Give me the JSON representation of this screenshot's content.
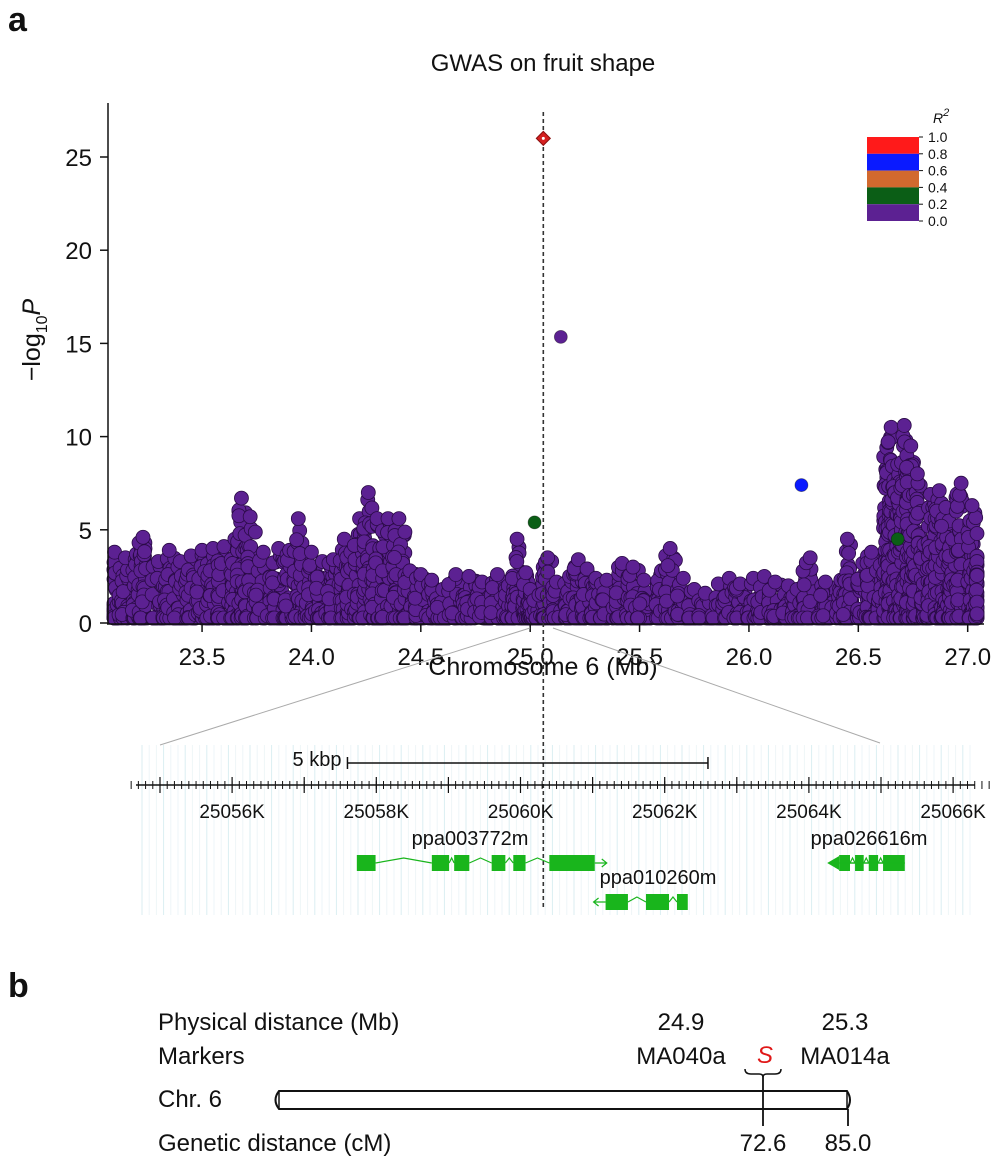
{
  "panel_a_label": "a",
  "panel_b_label": "b",
  "chart_data": [
    {
      "type": "scatter",
      "title": "GWAS on fruit shape",
      "xlabel": "Chromosome 6 (Mb)",
      "ylabel_main": "−log",
      "ylabel_sub": "10",
      "ylabel_italic": "P",
      "xlim": [
        23.07,
        27.07
      ],
      "ylim": [
        0,
        28
      ],
      "x_ticks": [
        23.5,
        24.0,
        24.5,
        25.0,
        25.5,
        26.0,
        26.5,
        27.0
      ],
      "x_tick_labels": [
        "23.5",
        "24.0",
        "24.5",
        "25.0",
        "25.5",
        "26.0",
        "26.5",
        "27.0"
      ],
      "y_ticks": [
        0,
        5,
        10,
        15,
        20,
        25
      ],
      "y_tick_labels": [
        "0",
        "5",
        "10",
        "15",
        "20",
        "25"
      ],
      "lead_snp_x": 25.06,
      "legend": {
        "title": "R",
        "title_sup": "2",
        "placement": "top-right",
        "bins": [
          {
            "from": 0.8,
            "to": 1.0,
            "color": "#ff1a1a"
          },
          {
            "from": 0.6,
            "to": 0.8,
            "color": "#0a1aff"
          },
          {
            "from": 0.4,
            "to": 0.6,
            "color": "#d2692e"
          },
          {
            "from": 0.2,
            "to": 0.4,
            "color": "#0b5e16"
          },
          {
            "from": 0.0,
            "to": 0.2,
            "color": "#5c2192"
          }
        ],
        "tick_labels": [
          "1.0",
          "0.8",
          "0.6",
          "0.4",
          "0.2",
          "0.0"
        ]
      },
      "highlighted_points": [
        {
          "name": "lead-snp",
          "x": 25.06,
          "y": 26.0,
          "r2_color": "#d42020",
          "shape": "diamond"
        },
        {
          "name": "snp-15",
          "x": 25.14,
          "y": 15.35,
          "r2_color": "#5c2192",
          "shape": "circle"
        },
        {
          "name": "snp-ld-blue",
          "x": 26.24,
          "y": 7.4,
          "r2_color": "#0a1aff",
          "shape": "circle"
        },
        {
          "name": "snp-ld-green",
          "x": 25.02,
          "y": 5.4,
          "r2_color": "#0b5e16",
          "shape": "circle"
        },
        {
          "name": "snp-ld-green-2",
          "x": 26.68,
          "y": 4.5,
          "r2_color": "#0b5e16",
          "shape": "circle"
        }
      ],
      "background_color": "#5c2192",
      "background_peaks": [
        {
          "x": 23.1,
          "y": 3.8
        },
        {
          "x": 23.15,
          "y": 3.5
        },
        {
          "x": 23.2,
          "y": 3.7
        },
        {
          "x": 23.23,
          "y": 4.6
        },
        {
          "x": 23.3,
          "y": 3.3
        },
        {
          "x": 23.35,
          "y": 3.9
        },
        {
          "x": 23.4,
          "y": 3.3
        },
        {
          "x": 23.45,
          "y": 3.6
        },
        {
          "x": 23.5,
          "y": 3.9
        },
        {
          "x": 23.55,
          "y": 4.0
        },
        {
          "x": 23.6,
          "y": 4.1
        },
        {
          "x": 23.65,
          "y": 4.5
        },
        {
          "x": 23.68,
          "y": 6.7
        },
        {
          "x": 23.72,
          "y": 5.7
        },
        {
          "x": 23.78,
          "y": 3.8
        },
        {
          "x": 23.85,
          "y": 4.0
        },
        {
          "x": 23.9,
          "y": 3.9
        },
        {
          "x": 23.94,
          "y": 5.6
        },
        {
          "x": 24.0,
          "y": 3.8
        },
        {
          "x": 24.05,
          "y": 3.3
        },
        {
          "x": 24.1,
          "y": 3.4
        },
        {
          "x": 24.15,
          "y": 4.5
        },
        {
          "x": 24.18,
          "y": 3.8
        },
        {
          "x": 24.22,
          "y": 5.6
        },
        {
          "x": 24.26,
          "y": 7.0
        },
        {
          "x": 24.3,
          "y": 5.6
        },
        {
          "x": 24.35,
          "y": 5.6
        },
        {
          "x": 24.4,
          "y": 5.6
        },
        {
          "x": 24.45,
          "y": 2.8
        },
        {
          "x": 24.5,
          "y": 2.6
        },
        {
          "x": 24.55,
          "y": 2.3
        },
        {
          "x": 24.6,
          "y": 1.8
        },
        {
          "x": 24.66,
          "y": 2.6
        },
        {
          "x": 24.72,
          "y": 2.5
        },
        {
          "x": 24.78,
          "y": 2.2
        },
        {
          "x": 24.85,
          "y": 2.6
        },
        {
          "x": 24.9,
          "y": 2.0
        },
        {
          "x": 24.94,
          "y": 4.5
        },
        {
          "x": 24.98,
          "y": 2.7
        },
        {
          "x": 25.0,
          "y": 1.8
        },
        {
          "x": 25.04,
          "y": 1.5
        },
        {
          "x": 25.08,
          "y": 3.5
        },
        {
          "x": 25.12,
          "y": 2.2
        },
        {
          "x": 25.18,
          "y": 2.5
        },
        {
          "x": 25.22,
          "y": 3.4
        },
        {
          "x": 25.26,
          "y": 2.9
        },
        {
          "x": 25.3,
          "y": 2.4
        },
        {
          "x": 25.35,
          "y": 2.3
        },
        {
          "x": 25.42,
          "y": 3.2
        },
        {
          "x": 25.47,
          "y": 3.0
        },
        {
          "x": 25.52,
          "y": 2.3
        },
        {
          "x": 25.6,
          "y": 2.8
        },
        {
          "x": 25.64,
          "y": 4.0
        },
        {
          "x": 25.7,
          "y": 2.4
        },
        {
          "x": 25.75,
          "y": 1.8
        },
        {
          "x": 25.8,
          "y": 1.6
        },
        {
          "x": 25.86,
          "y": 2.1
        },
        {
          "x": 25.91,
          "y": 2.4
        },
        {
          "x": 25.96,
          "y": 2.1
        },
        {
          "x": 26.02,
          "y": 2.4
        },
        {
          "x": 26.07,
          "y": 2.5
        },
        {
          "x": 26.12,
          "y": 2.2
        },
        {
          "x": 26.18,
          "y": 2.0
        },
        {
          "x": 26.22,
          "y": 1.8
        },
        {
          "x": 26.28,
          "y": 3.5
        },
        {
          "x": 26.35,
          "y": 2.2
        },
        {
          "x": 26.42,
          "y": 2.3
        },
        {
          "x": 26.45,
          "y": 4.5
        },
        {
          "x": 26.52,
          "y": 3.2
        },
        {
          "x": 26.56,
          "y": 3.8
        },
        {
          "x": 26.6,
          "y": 3.1
        },
        {
          "x": 26.63,
          "y": 9.4
        },
        {
          "x": 26.65,
          "y": 10.5
        },
        {
          "x": 26.68,
          "y": 8.5
        },
        {
          "x": 26.71,
          "y": 10.6
        },
        {
          "x": 26.74,
          "y": 9.5
        },
        {
          "x": 26.77,
          "y": 8.0
        },
        {
          "x": 26.8,
          "y": 4.2
        },
        {
          "x": 26.83,
          "y": 6.9
        },
        {
          "x": 26.87,
          "y": 7.1
        },
        {
          "x": 26.9,
          "y": 6.2
        },
        {
          "x": 26.93,
          "y": 4.5
        },
        {
          "x": 26.97,
          "y": 7.5
        },
        {
          "x": 27.02,
          "y": 6.3
        },
        {
          "x": 27.05,
          "y": 4.8
        }
      ]
    }
  ],
  "zoom_track": {
    "scale_bar_label": "5 kbp",
    "start_kb": 25054.6,
    "end_kb": 25066.5,
    "scale_bar_from_kb": 25057.6,
    "scale_bar_to_kb": 25062.6,
    "major_ticks_kb": [
      25055,
      25056,
      25057,
      25058,
      25059,
      25060,
      25061,
      25062,
      25063,
      25064,
      25065,
      25066
    ],
    "labeled_ticks": [
      {
        "kb": 25056,
        "label": "25056K"
      },
      {
        "kb": 25058,
        "label": "25058K"
      },
      {
        "kb": 25060,
        "label": "25060K"
      },
      {
        "kb": 25062,
        "label": "25062K"
      },
      {
        "kb": 25064,
        "label": "25064K"
      },
      {
        "kb": 25066,
        "label": "25066K"
      }
    ],
    "gene_color": "#19b51c",
    "genes": [
      {
        "name": "ppa003772m",
        "strand": "+",
        "start_kb": 25057.73,
        "end_kb": 25061.03,
        "exons_kb": [
          [
            25057.73,
            25057.99
          ],
          [
            25058.77,
            25059.01
          ],
          [
            25059.08,
            25059.29
          ],
          [
            25059.6,
            25059.79
          ],
          [
            25059.9,
            25060.07
          ],
          [
            25060.4,
            25061.03
          ]
        ]
      },
      {
        "name": "ppa010260m",
        "strand": "-",
        "start_kb": 25061.03,
        "end_kb": 25062.32,
        "exons_kb": [
          [
            25061.18,
            25061.49
          ],
          [
            25061.74,
            25062.06
          ],
          [
            25062.17,
            25062.32
          ]
        ]
      },
      {
        "name": "ppa026616m",
        "strand": "-",
        "start_kb": 25064.28,
        "end_kb": 25065.33,
        "exons_kb": [
          [
            25064.42,
            25064.57
          ],
          [
            25064.64,
            25064.76
          ],
          [
            25064.83,
            25064.96
          ],
          [
            25065.03,
            25065.15
          ],
          [
            25065.03,
            25065.33
          ]
        ]
      }
    ]
  },
  "panel_b": {
    "row_labels": {
      "physical": "Physical distance (Mb)",
      "markers": "Markers",
      "chromosome": "Chr. 6",
      "genetic": "Genetic distance (cM)"
    },
    "chromosome_length_cM": 85.0,
    "markers": [
      {
        "name": "MA040a",
        "physical_mb": "24.9"
      },
      {
        "name": "MA014a",
        "physical_mb": "25.3"
      }
    ],
    "locus": {
      "name": "S",
      "color": "#e01818",
      "genetic_cM": "72.6"
    },
    "end_label_cM": "85.0"
  }
}
